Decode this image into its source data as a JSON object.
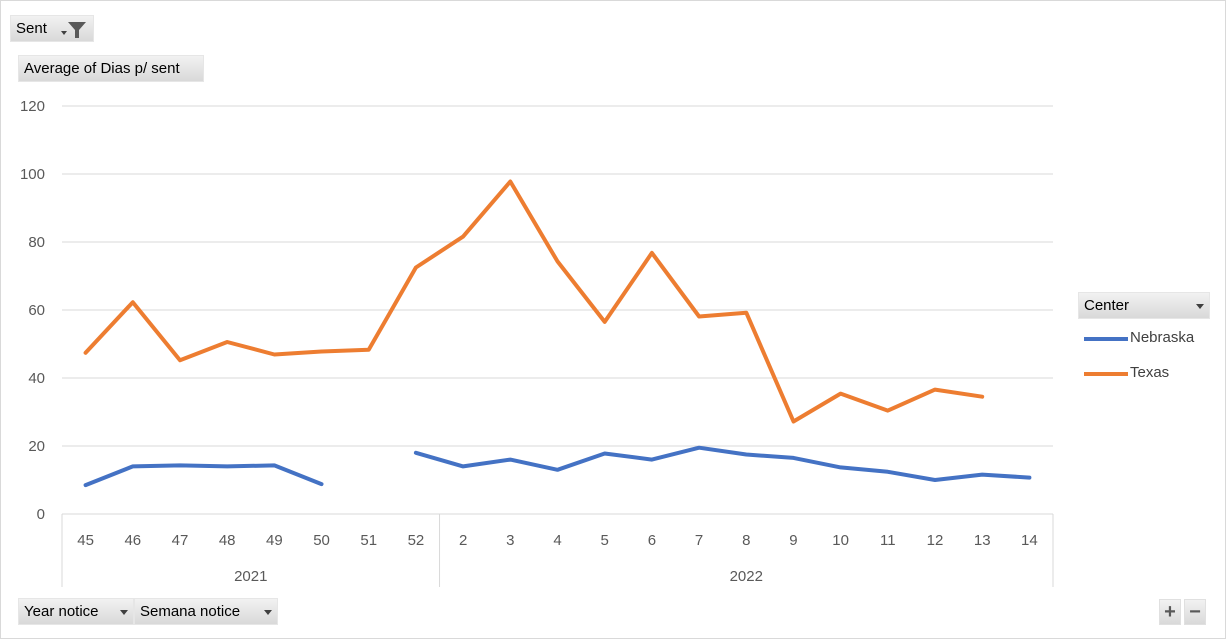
{
  "filter_button": {
    "label": "Sent",
    "icon": "filter-icon"
  },
  "value_button": {
    "label": "Average of Dias p/ sent"
  },
  "legend": {
    "title": "Center",
    "items": [
      {
        "label": "Nebraska",
        "color": "#4472c4"
      },
      {
        "label": "Texas",
        "color": "#ed7d31"
      }
    ]
  },
  "axis_buttons": [
    {
      "label": "Year notice"
    },
    {
      "label": "Semana notice"
    }
  ],
  "zoom": {
    "plus": "+",
    "minus": "−"
  },
  "chart_data": {
    "type": "line",
    "categories": [
      "45",
      "46",
      "47",
      "48",
      "49",
      "50",
      "51",
      "52",
      "2",
      "3",
      "4",
      "5",
      "6",
      "7",
      "8",
      "9",
      "10",
      "11",
      "12",
      "13",
      "14"
    ],
    "groups": [
      {
        "label": "2021",
        "start": 0,
        "end": 7
      },
      {
        "label": "2022",
        "start": 8,
        "end": 20
      }
    ],
    "yticks": [
      0,
      20,
      40,
      60,
      80,
      100,
      120
    ],
    "ylim": [
      0,
      120
    ],
    "grid": true,
    "legend_position": "right",
    "series": [
      {
        "name": "Nebraska",
        "color": "#4472c4",
        "values": [
          8.5,
          14,
          14.3,
          14,
          14.3,
          8.8,
          null,
          18,
          14,
          16,
          13,
          17.8,
          16,
          19.5,
          17.5,
          16.5,
          13.7,
          12.4,
          10,
          11.6,
          10.7
        ]
      },
      {
        "name": "Texas",
        "color": "#ed7d31",
        "values": [
          47.4,
          62.3,
          45.2,
          50.6,
          46.9,
          47.8,
          48.3,
          72.5,
          81.6,
          97.8,
          74.3,
          56.5,
          76.8,
          58.1,
          59.2,
          27.2,
          35.4,
          30.4,
          36.6,
          34.5,
          null
        ]
      }
    ]
  }
}
